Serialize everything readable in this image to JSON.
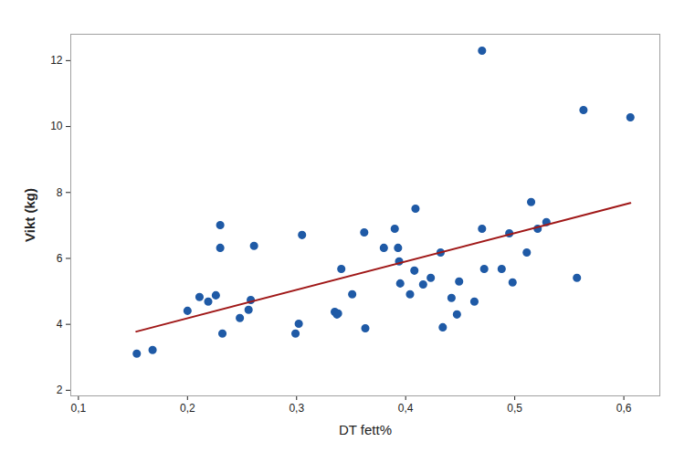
{
  "chart_data": {
    "type": "scatter",
    "x_label": "DT fett%",
    "y_label": "Vikt (kg)",
    "color": "#1f5aa6",
    "marker": "circle",
    "x": [
      0.1535,
      0.168,
      0.2,
      0.211,
      0.219,
      0.226,
      0.23,
      0.23,
      0.232,
      0.248,
      0.256,
      0.258,
      0.261,
      0.299,
      0.302,
      0.305,
      0.335,
      0.337,
      0.338,
      0.341,
      0.351,
      0.363,
      0.362,
      0.38,
      0.39,
      0.393,
      0.394,
      0.395,
      0.404,
      0.408,
      0.409,
      0.416,
      0.423,
      0.432,
      0.434,
      0.442,
      0.447,
      0.449,
      0.463,
      0.47,
      0.47,
      0.472,
      0.488,
      0.495,
      0.498,
      0.511,
      0.515,
      0.521,
      0.529,
      0.557,
      0.563,
      0.606
    ],
    "values": [
      3.11,
      3.22,
      4.41,
      4.83,
      4.69,
      4.88,
      7.01,
      6.32,
      3.72,
      4.19,
      4.44,
      4.74,
      6.38,
      3.72,
      4.02,
      6.71,
      4.38,
      4.3,
      4.33,
      5.68,
      4.91,
      3.88,
      6.79,
      6.32,
      6.9,
      6.32,
      5.91,
      5.24,
      4.91,
      5.63,
      7.51,
      5.21,
      5.41,
      6.18,
      3.91,
      4.8,
      4.3,
      5.3,
      4.69,
      12.3,
      6.9,
      5.68,
      5.68,
      6.76,
      5.27,
      6.18,
      7.71,
      6.9,
      7.1,
      5.41,
      10.5,
      10.28
    ],
    "fit": {
      "type": "line",
      "color": "#a01818",
      "x": [
        0.153,
        0.606
      ],
      "values": [
        3.78,
        7.68
      ]
    },
    "xlim": [
      0.093,
      0.633
    ],
    "ylim": [
      1.83,
      12.8
    ],
    "xticks": [
      {
        "value": 0.1,
        "label": "0,1"
      },
      {
        "value": 0.2,
        "label": "0,2"
      },
      {
        "value": 0.3,
        "label": "0,3"
      },
      {
        "value": 0.4,
        "label": "0,4"
      },
      {
        "value": 0.5,
        "label": "0,5"
      },
      {
        "value": 0.6,
        "label": "0,6"
      }
    ],
    "yticks": [
      2,
      4,
      6,
      8,
      10,
      12
    ],
    "grid": false
  }
}
